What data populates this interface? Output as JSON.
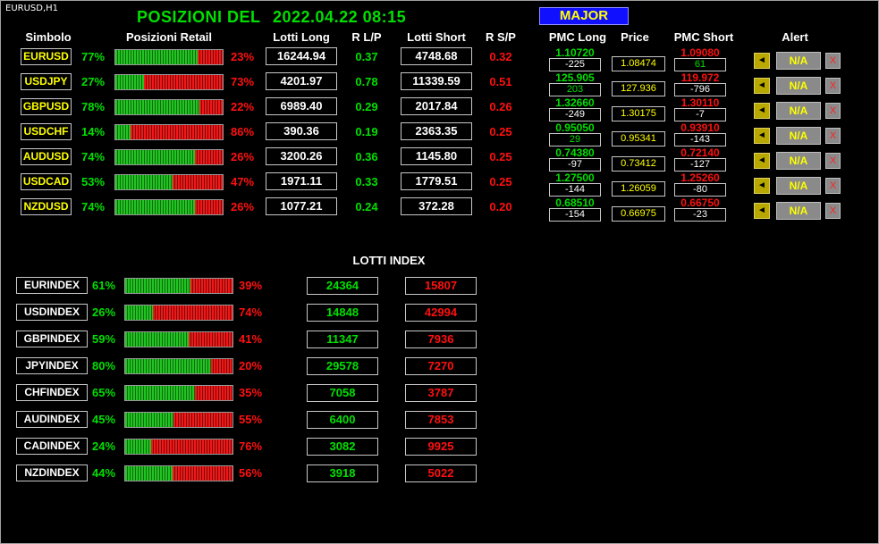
{
  "window_title": "EURUSD,H1",
  "header": {
    "title_prefix": "POSIZIONI  DEL",
    "timestamp": "2022.04.22 08:15",
    "major_button": "MAJOR"
  },
  "columns": {
    "symbol": "Simbolo",
    "retail": "Posizioni Retail",
    "lots_long": "Lotti Long",
    "r_lp": "R L/P",
    "lots_short": "Lotti Short",
    "r_sp": "R S/P",
    "pmc_long": "PMC Long",
    "price": "Price",
    "pmc_short": "PMC Short",
    "alert": "Alert"
  },
  "pairs": [
    {
      "symbol": "EURUSD",
      "long_pct": "77%",
      "short_pct": "23%",
      "long_frac": 0.77,
      "lots_long": "16244.94",
      "r_lp": "0.37",
      "lots_short": "4748.68",
      "r_sp": "0.32",
      "pmc_long": "1.10720",
      "pmc_long_diff": "-225",
      "price": "1.08474",
      "pmc_short": "1.09080",
      "pmc_short_diff": "61",
      "alert_btn": "N/A",
      "x_btn": "X"
    },
    {
      "symbol": "USDJPY",
      "long_pct": "27%",
      "short_pct": "73%",
      "long_frac": 0.27,
      "lots_long": "4201.97",
      "r_lp": "0.78",
      "lots_short": "11339.59",
      "r_sp": "0.51",
      "pmc_long": "125.905",
      "pmc_long_diff": "203",
      "price": "127.936",
      "pmc_short": "119.972",
      "pmc_short_diff": "-796",
      "alert_btn": "N/A",
      "x_btn": "X"
    },
    {
      "symbol": "GBPUSD",
      "long_pct": "78%",
      "short_pct": "22%",
      "long_frac": 0.78,
      "lots_long": "6989.40",
      "r_lp": "0.29",
      "lots_short": "2017.84",
      "r_sp": "0.26",
      "pmc_long": "1.32660",
      "pmc_long_diff": "-249",
      "price": "1.30175",
      "pmc_short": "1.30110",
      "pmc_short_diff": "-7",
      "alert_btn": "N/A",
      "x_btn": "X"
    },
    {
      "symbol": "USDCHF",
      "long_pct": "14%",
      "short_pct": "86%",
      "long_frac": 0.14,
      "lots_long": "390.36",
      "r_lp": "0.19",
      "lots_short": "2363.35",
      "r_sp": "0.25",
      "pmc_long": "0.95050",
      "pmc_long_diff": "29",
      "price": "0.95341",
      "pmc_short": "0.93910",
      "pmc_short_diff": "-143",
      "alert_btn": "N/A",
      "x_btn": "X"
    },
    {
      "symbol": "AUDUSD",
      "long_pct": "74%",
      "short_pct": "26%",
      "long_frac": 0.74,
      "lots_long": "3200.26",
      "r_lp": "0.36",
      "lots_short": "1145.80",
      "r_sp": "0.25",
      "pmc_long": "0.74380",
      "pmc_long_diff": "-97",
      "price": "0.73412",
      "pmc_short": "0.72140",
      "pmc_short_diff": "-127",
      "alert_btn": "N/A",
      "x_btn": "X"
    },
    {
      "symbol": "USDCAD",
      "long_pct": "53%",
      "short_pct": "47%",
      "long_frac": 0.53,
      "lots_long": "1971.11",
      "r_lp": "0.33",
      "lots_short": "1779.51",
      "r_sp": "0.25",
      "pmc_long": "1.27500",
      "pmc_long_diff": "-144",
      "price": "1.26059",
      "pmc_short": "1.25260",
      "pmc_short_diff": "-80",
      "alert_btn": "N/A",
      "x_btn": "X"
    },
    {
      "symbol": "NZDUSD",
      "long_pct": "74%",
      "short_pct": "26%",
      "long_frac": 0.74,
      "lots_long": "1077.21",
      "r_lp": "0.24",
      "lots_short": "372.28",
      "r_sp": "0.20",
      "pmc_long": "0.68510",
      "pmc_long_diff": "-154",
      "price": "0.66975",
      "pmc_short": "0.66750",
      "pmc_short_diff": "-23",
      "alert_btn": "N/A",
      "x_btn": "X"
    }
  ],
  "lotti_index_title": "LOTTI INDEX",
  "indexes": [
    {
      "name": "EURINDEX",
      "long_pct": "61%",
      "short_pct": "39%",
      "long_frac": 0.61,
      "lots_long": "24364",
      "lots_short": "15807"
    },
    {
      "name": "USDINDEX",
      "long_pct": "26%",
      "short_pct": "74%",
      "long_frac": 0.26,
      "lots_long": "14848",
      "lots_short": "42994"
    },
    {
      "name": "GBPINDEX",
      "long_pct": "59%",
      "short_pct": "41%",
      "long_frac": 0.59,
      "lots_long": "11347",
      "lots_short": "7936"
    },
    {
      "name": "JPYINDEX",
      "long_pct": "80%",
      "short_pct": "20%",
      "long_frac": 0.8,
      "lots_long": "29578",
      "lots_short": "7270"
    },
    {
      "name": "CHFINDEX",
      "long_pct": "65%",
      "short_pct": "35%",
      "long_frac": 0.65,
      "lots_long": "7058",
      "lots_short": "3787"
    },
    {
      "name": "AUDINDEX",
      "long_pct": "45%",
      "short_pct": "55%",
      "long_frac": 0.45,
      "lots_long": "6400",
      "lots_short": "7853"
    },
    {
      "name": "CADINDEX",
      "long_pct": "24%",
      "short_pct": "76%",
      "long_frac": 0.24,
      "lots_long": "3082",
      "lots_short": "9925"
    },
    {
      "name": "NZDINDEX",
      "long_pct": "44%",
      "short_pct": "56%",
      "long_frac": 0.44,
      "lots_long": "3918",
      "lots_short": "5022"
    }
  ],
  "colors": {
    "long": "#00e000",
    "short": "#ff1010",
    "symbol": "#ffff00",
    "major_bg": "#1010ff"
  },
  "icons": {
    "alert": "megaphone-icon",
    "remove": "close-icon"
  }
}
